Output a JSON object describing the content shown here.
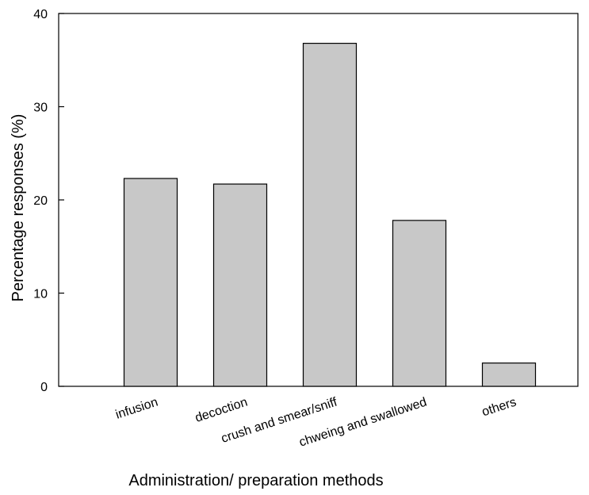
{
  "chart_data": {
    "type": "bar",
    "title": "",
    "xlabel": "Administration/ preparation methods",
    "ylabel": "Percentage responses (%)",
    "categories": [
      "infusion",
      "decoction",
      "crush and smear/sniff",
      "chweing and swallowed",
      "others"
    ],
    "values": [
      22.3,
      21.7,
      36.8,
      17.8,
      2.5
    ],
    "ylim": [
      0,
      40
    ],
    "yticks": [
      0,
      10,
      20,
      30,
      40
    ],
    "grid": false,
    "legend": "none",
    "colors": {
      "bar_fill": "#c8c8c8",
      "bar_stroke": "#000000",
      "axis": "#000000"
    }
  }
}
